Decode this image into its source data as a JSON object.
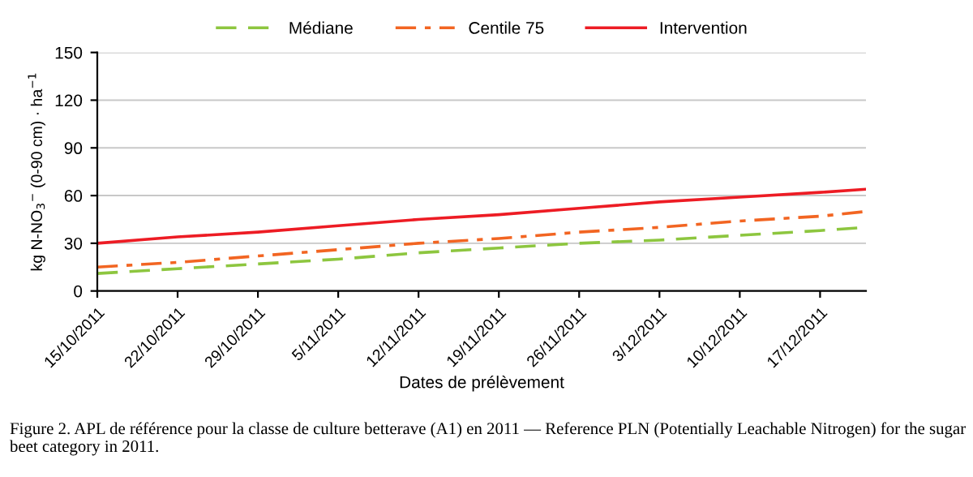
{
  "chart_data": {
    "type": "line",
    "xlabel": "Dates de prélèvement",
    "ylabel": "kg N-NO$_{3}$$^{−}$ (0-90 cm) · ha$^{−1}$",
    "x": [
      "2011-10-15",
      "2011-10-22",
      "2011-10-29",
      "2011-11-05",
      "2011-11-12",
      "2011-11-19",
      "2011-11-26",
      "2011-12-03",
      "2011-12-10",
      "2011-12-17",
      "2011-12-21"
    ],
    "series": [
      {
        "name": "Médiane",
        "color": "#8dc63f",
        "line_style": "dashed",
        "values": [
          11,
          14,
          17,
          20,
          24,
          27,
          30,
          32,
          35,
          38,
          40
        ]
      },
      {
        "name": "Centile 75",
        "color": "#f26522",
        "line_style": "dashdot",
        "values": [
          15,
          18,
          22,
          26,
          30,
          33,
          37,
          40,
          44,
          47,
          50
        ]
      },
      {
        "name": "Intervention",
        "color": "#ed1c24",
        "line_style": "solid",
        "values": [
          30,
          34,
          37,
          41,
          45,
          48,
          52,
          56,
          59,
          62,
          64
        ]
      }
    ],
    "xlim": [
      "2011-10-15",
      "2011-12-21"
    ],
    "xticks": [
      {
        "value": "2011-10-15",
        "label": "15/10/2011"
      },
      {
        "value": "2011-10-22",
        "label": "22/10/2011"
      },
      {
        "value": "2011-10-29",
        "label": "29/10/2011"
      },
      {
        "value": "2011-11-05",
        "label": "5/11/2011"
      },
      {
        "value": "2011-11-12",
        "label": "12/11/2011"
      },
      {
        "value": "2011-11-19",
        "label": "19/11/2011"
      },
      {
        "value": "2011-11-26",
        "label": "26/11/2011"
      },
      {
        "value": "2011-12-03",
        "label": "3/12/2011"
      },
      {
        "value": "2011-12-10",
        "label": "10/12/2011"
      },
      {
        "value": "2011-12-17",
        "label": "17/12/2011"
      }
    ],
    "ylim": [
      0,
      150
    ],
    "yticks": [
      0,
      30,
      60,
      90,
      120,
      150
    ],
    "grid": "y",
    "legend": "top",
    "annotations": [
      "Figure 2. APL de référence pour la classe de culture betterave (A1) en 2011 — Reference PLN (Potentially Leachable Nitrogen) for the sugar beet category in 2011."
    ]
  }
}
